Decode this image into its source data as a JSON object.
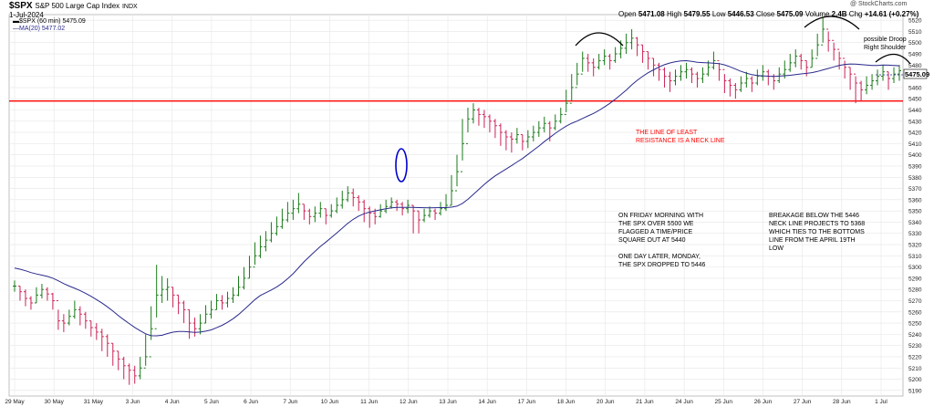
{
  "header": {
    "symbol": "$SPX",
    "name": "S&P 500 Large Cap Index",
    "exchange": "INDX",
    "date": "1-Jul-2024",
    "watermark": "@ StockCharts.com",
    "ohlc": {
      "open_label": "Open",
      "open": "5471.08",
      "high_label": "High",
      "high": "5479.55",
      "low_label": "Low",
      "low": "5446.53",
      "close_label": "Close",
      "close": "5475.09",
      "volume_label": "Volume",
      "volume": "2.4B",
      "chg_label": "Chg",
      "chg": "+14.61 (+0.27%)"
    }
  },
  "legend": {
    "price": "$SPX (60 min) 5475.09",
    "ma": "MA(20) 5477.02"
  },
  "annotations": {
    "neckline": [
      "THE LINE OF LEAST",
      "RESISTANCE IS A NECK LINE"
    ],
    "friday": [
      "ON FRIDAY MORNING WITH",
      "THE SPX OVER 5500 WE",
      "FLAGGED A TIME/PRICE",
      "SQUARE OUT AT 5440",
      "",
      "ONE DAY LATER, MONDAY,",
      "THE SPX DROPPED TO 5446"
    ],
    "breakage": [
      "BREAKAGE BELOW THE 5446",
      "NECK LINE PROJECTS TO 5368",
      "WHICH TIES TO THE BOTTOMS",
      "LINE FROM THE APRIL 19TH",
      "LOW"
    ],
    "droop": [
      "possible Droop",
      "Right Shoulder"
    ]
  },
  "colors": {
    "up": "#1a7a1a",
    "down": "#cc2255",
    "ma": "#2a2a8c",
    "neckline": "#ff0000",
    "grid": "#e6e6e6",
    "ellipse": "#0000cc",
    "annotation_red": "#ff0000"
  },
  "chart_data": {
    "type": "ohlc",
    "interval": "60 min",
    "y_ticks": [
      5190,
      5200,
      5210,
      5220,
      5230,
      5240,
      5250,
      5260,
      5270,
      5280,
      5290,
      5300,
      5310,
      5320,
      5330,
      5340,
      5350,
      5360,
      5370,
      5380,
      5390,
      5400,
      5410,
      5420,
      5430,
      5440,
      5450,
      5460,
      5470,
      5480,
      5490,
      5500,
      5510,
      5520
    ],
    "ylim": [
      5185,
      5525
    ],
    "last_price": "5475.09",
    "x_labels": [
      "29 May",
      "30 May",
      "31 May",
      "3 Jun",
      "4 Jun",
      "5 Jun",
      "6 Jun",
      "7 Jun",
      "10 Jun",
      "11 Jun",
      "12 Jun",
      "13 Jun",
      "14 Jun",
      "17 Jun",
      "18 Jun",
      "20 Jun",
      "21 Jun",
      "24 Jun",
      "25 Jun",
      "26 Jun",
      "27 Jun",
      "28 Jun",
      "1 Jul"
    ],
    "neckline": 5448,
    "bars": [
      [
        5283,
        5278,
        5288
      ],
      [
        5278,
        5270,
        5283
      ],
      [
        5272,
        5265,
        5280
      ],
      [
        5268,
        5262,
        5274
      ],
      [
        5275,
        5268,
        5282
      ],
      [
        5280,
        5272,
        5285
      ],
      [
        5276,
        5270,
        5282
      ],
      [
        5270,
        5262,
        5277
      ],
      [
        5252,
        5244,
        5262
      ],
      [
        5250,
        5242,
        5258
      ],
      [
        5256,
        5248,
        5262
      ],
      [
        5262,
        5254,
        5270
      ],
      [
        5258,
        5248,
        5265
      ],
      [
        5252,
        5245,
        5260
      ],
      [
        5246,
        5238,
        5252
      ],
      [
        5242,
        5235,
        5250
      ],
      [
        5238,
        5225,
        5245
      ],
      [
        5232,
        5220,
        5240
      ],
      [
        5225,
        5212,
        5232
      ],
      [
        5218,
        5208,
        5225
      ],
      [
        5212,
        5200,
        5220
      ],
      [
        5208,
        5195,
        5214
      ],
      [
        5203,
        5196,
        5212
      ],
      [
        5210,
        5200,
        5220
      ],
      [
        5220,
        5212,
        5240
      ],
      [
        5245,
        5235,
        5265
      ],
      [
        5275,
        5255,
        5302
      ],
      [
        5280,
        5268,
        5292
      ],
      [
        5282,
        5270,
        5290
      ],
      [
        5275,
        5264,
        5282
      ],
      [
        5268,
        5258,
        5275
      ],
      [
        5262,
        5250,
        5270
      ],
      [
        5250,
        5236,
        5262
      ],
      [
        5245,
        5238,
        5255
      ],
      [
        5250,
        5240,
        5258
      ],
      [
        5258,
        5250,
        5266
      ],
      [
        5262,
        5254,
        5270
      ],
      [
        5270,
        5262,
        5276
      ],
      [
        5268,
        5262,
        5275
      ],
      [
        5272,
        5264,
        5278
      ],
      [
        5275,
        5268,
        5282
      ],
      [
        5282,
        5274,
        5292
      ],
      [
        5290,
        5280,
        5300
      ],
      [
        5300,
        5290,
        5310
      ],
      [
        5310,
        5302,
        5322
      ],
      [
        5318,
        5308,
        5328
      ],
      [
        5324,
        5314,
        5332
      ],
      [
        5330,
        5322,
        5340
      ],
      [
        5336,
        5328,
        5345
      ],
      [
        5342,
        5334,
        5352
      ],
      [
        5348,
        5340,
        5358
      ],
      [
        5352,
        5342,
        5360
      ],
      [
        5356,
        5348,
        5366
      ],
      [
        5350,
        5342,
        5356
      ],
      [
        5345,
        5338,
        5352
      ],
      [
        5348,
        5340,
        5354
      ],
      [
        5352,
        5344,
        5358
      ],
      [
        5346,
        5338,
        5352
      ],
      [
        5350,
        5344,
        5356
      ],
      [
        5355,
        5348,
        5362
      ],
      [
        5360,
        5352,
        5368
      ],
      [
        5366,
        5358,
        5372
      ],
      [
        5362,
        5354,
        5370
      ],
      [
        5358,
        5350,
        5364
      ],
      [
        5352,
        5340,
        5360
      ],
      [
        5348,
        5335,
        5354
      ],
      [
        5345,
        5338,
        5352
      ],
      [
        5350,
        5344,
        5356
      ],
      [
        5354,
        5348,
        5360
      ],
      [
        5358,
        5352,
        5362
      ],
      [
        5356,
        5350,
        5360
      ],
      [
        5352,
        5346,
        5358
      ],
      [
        5355,
        5348,
        5360
      ],
      [
        5350,
        5330,
        5355
      ],
      [
        5342,
        5330,
        5350
      ],
      [
        5346,
        5340,
        5352
      ],
      [
        5350,
        5344,
        5354
      ],
      [
        5348,
        5342,
        5352
      ],
      [
        5352,
        5346,
        5358
      ],
      [
        5355,
        5350,
        5365
      ],
      [
        5368,
        5355,
        5382
      ],
      [
        5385,
        5372,
        5400
      ],
      [
        5410,
        5395,
        5432
      ],
      [
        5432,
        5420,
        5442
      ],
      [
        5440,
        5428,
        5446
      ],
      [
        5436,
        5426,
        5442
      ],
      [
        5434,
        5424,
        5440
      ],
      [
        5430,
        5420,
        5436
      ],
      [
        5426,
        5415,
        5432
      ],
      [
        5420,
        5408,
        5428
      ],
      [
        5416,
        5404,
        5422
      ],
      [
        5414,
        5402,
        5420
      ],
      [
        5418,
        5410,
        5424
      ],
      [
        5412,
        5404,
        5418
      ],
      [
        5416,
        5406,
        5422
      ],
      [
        5420,
        5412,
        5426
      ],
      [
        5424,
        5416,
        5430
      ],
      [
        5428,
        5420,
        5434
      ],
      [
        5424,
        5412,
        5430
      ],
      [
        5430,
        5422,
        5436
      ],
      [
        5436,
        5428,
        5442
      ],
      [
        5446,
        5438,
        5458
      ],
      [
        5460,
        5448,
        5472
      ],
      [
        5472,
        5462,
        5482
      ],
      [
        5486,
        5474,
        5492
      ],
      [
        5482,
        5474,
        5490
      ],
      [
        5478,
        5470,
        5486
      ],
      [
        5484,
        5476,
        5490
      ],
      [
        5488,
        5480,
        5494
      ],
      [
        5484,
        5476,
        5490
      ],
      [
        5490,
        5482,
        5496
      ],
      [
        5495,
        5486,
        5502
      ],
      [
        5500,
        5490,
        5508
      ],
      [
        5504,
        5494,
        5512
      ],
      [
        5498,
        5488,
        5505
      ],
      [
        5492,
        5482,
        5498
      ],
      [
        5486,
        5476,
        5492
      ],
      [
        5480,
        5470,
        5486
      ],
      [
        5476,
        5466,
        5482
      ],
      [
        5470,
        5460,
        5478
      ],
      [
        5466,
        5456,
        5474
      ],
      [
        5470,
        5462,
        5476
      ],
      [
        5474,
        5466,
        5480
      ],
      [
        5476,
        5468,
        5482
      ],
      [
        5472,
        5464,
        5478
      ],
      [
        5468,
        5460,
        5474
      ],
      [
        5472,
        5464,
        5478
      ],
      [
        5478,
        5470,
        5484
      ],
      [
        5484,
        5476,
        5492
      ],
      [
        5476,
        5466,
        5482
      ],
      [
        5466,
        5455,
        5472
      ],
      [
        5462,
        5452,
        5468
      ],
      [
        5458,
        5450,
        5464
      ],
      [
        5464,
        5456,
        5470
      ],
      [
        5468,
        5460,
        5474
      ],
      [
        5464,
        5456,
        5470
      ],
      [
        5470,
        5462,
        5476
      ],
      [
        5474,
        5466,
        5480
      ],
      [
        5470,
        5462,
        5476
      ],
      [
        5466,
        5458,
        5472
      ],
      [
        5472,
        5464,
        5478
      ],
      [
        5476,
        5468,
        5484
      ],
      [
        5482,
        5474,
        5490
      ],
      [
        5488,
        5478,
        5494
      ],
      [
        5484,
        5476,
        5490
      ],
      [
        5478,
        5470,
        5484
      ],
      [
        5486,
        5478,
        5494
      ],
      [
        5498,
        5488,
        5508
      ],
      [
        5512,
        5500,
        5522
      ],
      [
        5502,
        5492,
        5510
      ],
      [
        5494,
        5484,
        5500
      ],
      [
        5486,
        5476,
        5492
      ],
      [
        5478,
        5468,
        5484
      ],
      [
        5472,
        5458,
        5478
      ],
      [
        5464,
        5446,
        5470
      ],
      [
        5458,
        5448,
        5466
      ],
      [
        5462,
        5454,
        5470
      ],
      [
        5466,
        5458,
        5472
      ],
      [
        5470,
        5462,
        5476
      ],
      [
        5474,
        5466,
        5480
      ],
      [
        5468,
        5458,
        5474
      ],
      [
        5472,
        5464,
        5478
      ],
      [
        5475,
        5466,
        5480
      ]
    ]
  }
}
